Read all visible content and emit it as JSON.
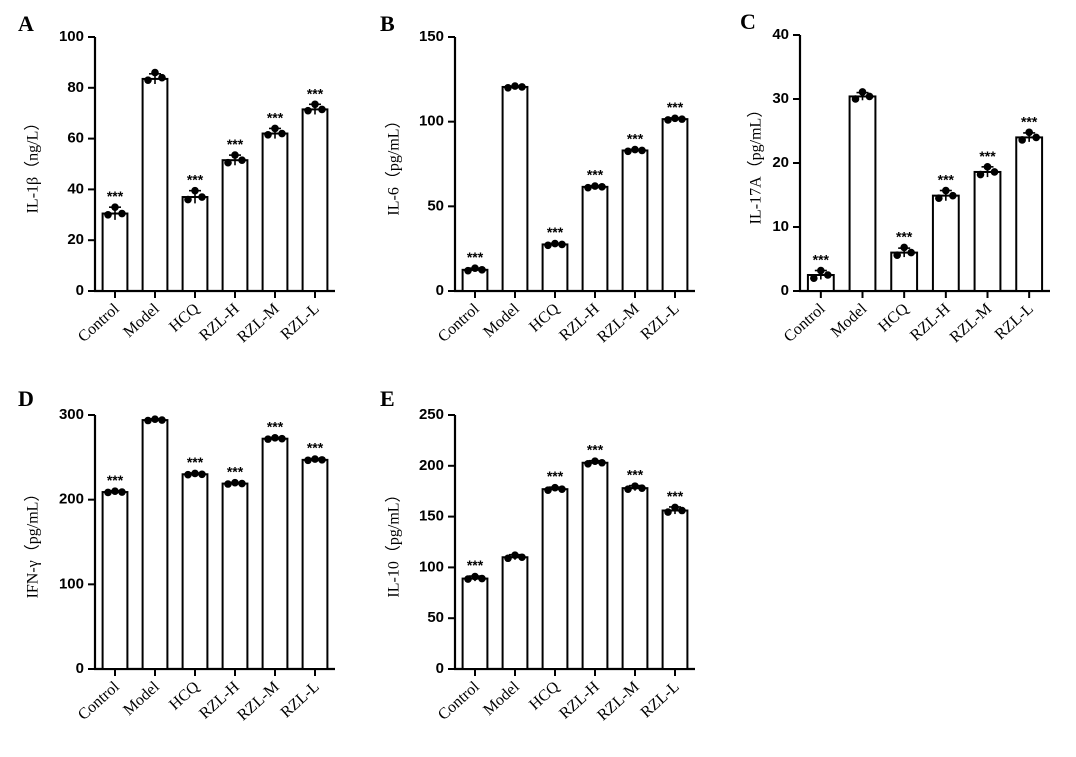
{
  "figure": {
    "colors": {
      "bar_fill": "#ffffff",
      "bar_stroke": "#000000",
      "point": "#000000"
    }
  },
  "chart_data": [
    {
      "type": "bar",
      "panel": "A",
      "ylabel": "IL-1β（ng/L）",
      "categories": [
        "Control",
        "Model",
        "HCQ",
        "RZL-H",
        "RZL-M",
        "RZL-L"
      ],
      "values": [
        30.5,
        83.5,
        37,
        51.5,
        62,
        71.5
      ],
      "errors": [
        2.5,
        2,
        2.5,
        2,
        2,
        2
      ],
      "points": [
        [
          30,
          30.5,
          33
        ],
        [
          83,
          84,
          86
        ],
        [
          36,
          37,
          39.5
        ],
        [
          50.5,
          51.5,
          53.5
        ],
        [
          61.5,
          62,
          64
        ],
        [
          71,
          71.5,
          73.5
        ]
      ],
      "significance": [
        "***",
        "",
        "***",
        "***",
        "***",
        "***"
      ],
      "ylim": [
        0,
        100
      ],
      "yticks": [
        "0",
        "20",
        "40",
        "60",
        "80",
        "100"
      ],
      "grid": false
    },
    {
      "type": "bar",
      "panel": "B",
      "ylabel": "IL-6（pg/mL）",
      "categories": [
        "Control",
        "Model",
        "HCQ",
        "RZL-H",
        "RZL-M",
        "RZL-L"
      ],
      "values": [
        12.5,
        120.5,
        27.5,
        61.5,
        83,
        101.5
      ],
      "errors": [
        1,
        0.5,
        0.7,
        0.7,
        0.7,
        0.7
      ],
      "points": [
        [
          12,
          12.5,
          13.5
        ],
        [
          120,
          120.5,
          121
        ],
        [
          27,
          27.5,
          28
        ],
        [
          61,
          61.5,
          62
        ],
        [
          82.5,
          83,
          83.5
        ],
        [
          101,
          101.5,
          102
        ]
      ],
      "significance": [
        "***",
        "",
        "***",
        "***",
        "***",
        "***"
      ],
      "ylim": [
        0,
        150
      ],
      "yticks": [
        "0",
        "50",
        "100",
        "150"
      ],
      "grid": false
    },
    {
      "type": "bar",
      "panel": "C",
      "ylabel": "IL-17A（pg/mL）",
      "categories": [
        "Control",
        "Model",
        "HCQ",
        "RZL-H",
        "RZL-M",
        "RZL-L"
      ],
      "values": [
        2.5,
        30.4,
        6,
        14.9,
        18.6,
        24
      ],
      "errors": [
        0.7,
        0.6,
        0.7,
        0.8,
        0.8,
        0.7
      ],
      "points": [
        [
          2,
          2.5,
          3.2
        ],
        [
          30,
          30.4,
          31.1
        ],
        [
          5.6,
          6,
          6.8
        ],
        [
          14.5,
          14.9,
          15.7
        ],
        [
          18.2,
          18.6,
          19.4
        ],
        [
          23.6,
          24,
          24.8
        ]
      ],
      "significance": [
        "***",
        "",
        "***",
        "***",
        "***",
        "***"
      ],
      "ylim": [
        0,
        40
      ],
      "yticks": [
        "0",
        "10",
        "20",
        "30",
        "40"
      ],
      "grid": false
    },
    {
      "type": "bar",
      "panel": "D",
      "ylabel": "IFN-γ（pg/mL）",
      "categories": [
        "Control",
        "Model",
        "HCQ",
        "RZL-H",
        "RZL-M",
        "RZL-L"
      ],
      "values": [
        209,
        294,
        230,
        219,
        272,
        247
      ],
      "errors": [
        1.5,
        1.5,
        1.5,
        1.5,
        1.5,
        1.5
      ],
      "points": [
        [
          208.5,
          209,
          210
        ],
        [
          293.5,
          294,
          295
        ],
        [
          229.5,
          230,
          231
        ],
        [
          218.5,
          219,
          220
        ],
        [
          271.5,
          272,
          273
        ],
        [
          246.5,
          247,
          248
        ]
      ],
      "significance": [
        "***",
        "",
        "***",
        "***",
        "***",
        "***"
      ],
      "ylim": [
        0,
        300
      ],
      "yticks": [
        "0",
        "100",
        "200",
        "300"
      ],
      "grid": false
    },
    {
      "type": "bar",
      "panel": "E",
      "ylabel": "IL-10（pg/mL）",
      "categories": [
        "Control",
        "Model",
        "HCQ",
        "RZL-H",
        "RZL-M",
        "RZL-L"
      ],
      "values": [
        89,
        110,
        177,
        203,
        178,
        156
      ],
      "errors": [
        2.5,
        2.5,
        2,
        2,
        2.5,
        3.5
      ],
      "points": [
        [
          88.5,
          89,
          91
        ],
        [
          109,
          110,
          112
        ],
        [
          176,
          177,
          178.5
        ],
        [
          202,
          203,
          204.5
        ],
        [
          177,
          178,
          180
        ],
        [
          154.5,
          156,
          159
        ]
      ],
      "significance": [
        "***",
        "",
        "***",
        "***",
        "***",
        "***"
      ],
      "ylim": [
        0,
        250
      ],
      "yticks": [
        "0",
        "50",
        "100",
        "150",
        "200",
        "250"
      ],
      "grid": false
    }
  ]
}
